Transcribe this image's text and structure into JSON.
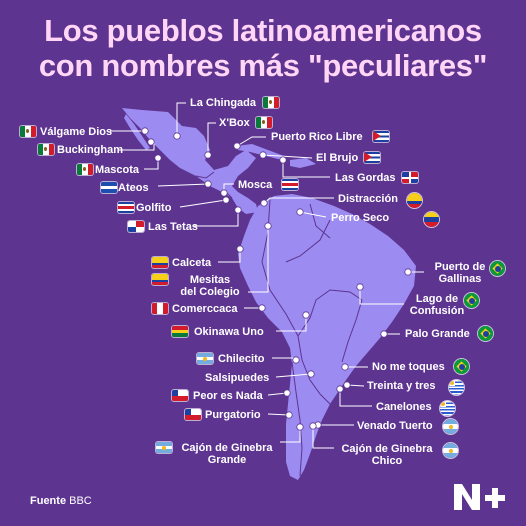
{
  "title": {
    "line1": "Los pueblos latinoamericanos",
    "line2": "con nombres más \"peculiares\""
  },
  "places": [
    {
      "id": "la-chingada",
      "label": "La Chingada",
      "country": "mexico"
    },
    {
      "id": "xbox",
      "label": "X'Box",
      "country": "mexico"
    },
    {
      "id": "valgame-dios",
      "label": "Válgame Dios",
      "country": "mexico"
    },
    {
      "id": "buckingham",
      "label": "Buckingham",
      "country": "mexico"
    },
    {
      "id": "mascota",
      "label": "Mascota",
      "country": "mexico"
    },
    {
      "id": "puerto-rico-libre",
      "label": "Puerto Rico Libre",
      "country": "cuba"
    },
    {
      "id": "el-brujo",
      "label": "El Brujo",
      "country": "cuba"
    },
    {
      "id": "las-gordas",
      "label": "Las Gordas",
      "country": "dominican-republic"
    },
    {
      "id": "ateos",
      "label": "Ateos",
      "country": "el-salvador"
    },
    {
      "id": "mosca",
      "label": "Mosca",
      "country": "costa-rica"
    },
    {
      "id": "golfito",
      "label": "Golfito",
      "country": "costa-rica"
    },
    {
      "id": "las-tetas",
      "label": "Las Tetas",
      "country": "panama"
    },
    {
      "id": "distraccion",
      "label": "Distracción",
      "country": "colombia"
    },
    {
      "id": "perro-seco",
      "label": "Perro Seco",
      "country": "venezuela"
    },
    {
      "id": "calceta",
      "label": "Calceta",
      "country": "ecuador"
    },
    {
      "id": "mesitas-del-colegio",
      "label": "Mesitas\ndel Colegio",
      "country": "colombia"
    },
    {
      "id": "comerccaca",
      "label": "Comerccaca",
      "country": "peru"
    },
    {
      "id": "okinawa-uno",
      "label": "Okinawa Uno",
      "country": "bolivia"
    },
    {
      "id": "chilecito",
      "label": "Chilecito",
      "country": "argentina"
    },
    {
      "id": "salsipuedes",
      "label": "Salsipuedes",
      "country": "colombia"
    },
    {
      "id": "peor-es-nada",
      "label": "Peor es Nada",
      "country": "chile"
    },
    {
      "id": "purgatorio",
      "label": "Purgatorio",
      "country": "chile"
    },
    {
      "id": "cajon-grande",
      "label": "Cajón de Ginebra\nGrande",
      "country": "argentina"
    },
    {
      "id": "puerto-de-gallinas",
      "label": "Puerto de\nGallinas",
      "country": "brazil"
    },
    {
      "id": "lago-de-confusion",
      "label": "Lago de\nConfusión",
      "country": "brazil"
    },
    {
      "id": "palo-grande",
      "label": "Palo Grande",
      "country": "brazil"
    },
    {
      "id": "no-me-toques",
      "label": "No me toques",
      "country": "brazil"
    },
    {
      "id": "treinta-y-tres",
      "label": "Treinta y tres",
      "country": "uruguay"
    },
    {
      "id": "canelones",
      "label": "Canelones",
      "country": "uruguay"
    },
    {
      "id": "venado-tuerto",
      "label": "Venado Tuerto",
      "country": "argentina"
    },
    {
      "id": "cajon-chico",
      "label": "Cajón de Ginebra\nChico",
      "country": "argentina"
    }
  ],
  "source": {
    "prefix": "Fuente",
    "name": "BBC"
  },
  "colors": {
    "background": "#5e3491",
    "title": "#ffd6f5",
    "land": "#9c8bf0",
    "border": "#5e3491",
    "line": "#ffffff"
  },
  "logo_icon": "n-plus-logo"
}
